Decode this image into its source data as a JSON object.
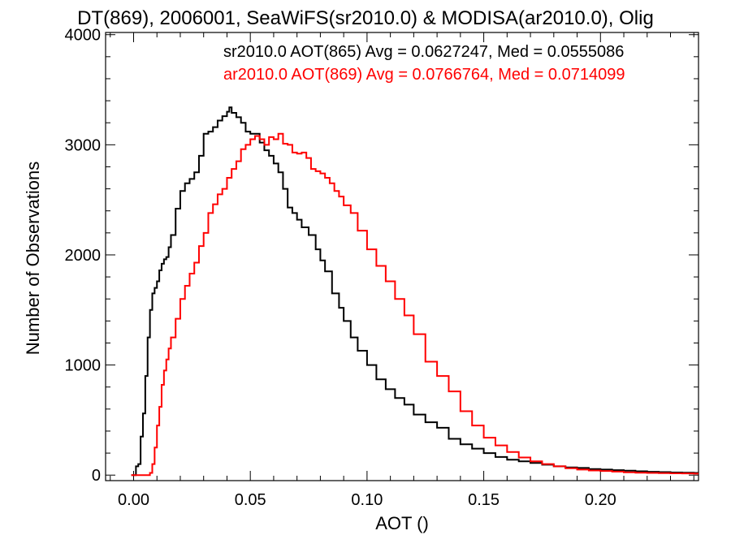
{
  "chart_data": {
    "type": "line",
    "title": "DT(869), 2006001, SeaWiFS(sr2010.0) & MODISA(ar2010.0), Olig",
    "xlabel": "AOT ()",
    "ylabel": "Number of Observations",
    "xlim": [
      -0.012,
      0.242
    ],
    "ylim": [
      -50,
      4020
    ],
    "xticks": [
      0.0,
      0.05,
      0.1,
      0.15,
      0.2
    ],
    "xtick_labels": [
      "0.00",
      "0.05",
      "0.10",
      "0.15",
      "0.20"
    ],
    "yticks": [
      0,
      1000,
      2000,
      3000,
      4000
    ],
    "ytick_labels": [
      "0",
      "1000",
      "2000",
      "3000",
      "4000"
    ],
    "grid": false,
    "legend_position": "top-right",
    "series": [
      {
        "name": "sr2010.0 AOT(865) Avg = 0.0627247, Med = 0.0555086",
        "color": "#000000",
        "x": [
          -0.001,
          0.0,
          0.001,
          0.002,
          0.003,
          0.004,
          0.005,
          0.006,
          0.007,
          0.008,
          0.009,
          0.01,
          0.011,
          0.012,
          0.013,
          0.014,
          0.015,
          0.016,
          0.018,
          0.02,
          0.022,
          0.024,
          0.026,
          0.028,
          0.03,
          0.032,
          0.034,
          0.036,
          0.038,
          0.04,
          0.041,
          0.042,
          0.044,
          0.046,
          0.048,
          0.05,
          0.052,
          0.054,
          0.056,
          0.058,
          0.06,
          0.062,
          0.064,
          0.066,
          0.068,
          0.07,
          0.072,
          0.075,
          0.078,
          0.08,
          0.082,
          0.085,
          0.088,
          0.09,
          0.093,
          0.096,
          0.1,
          0.104,
          0.108,
          0.112,
          0.116,
          0.12,
          0.125,
          0.13,
          0.135,
          0.14,
          0.145,
          0.15,
          0.155,
          0.16,
          0.165,
          0.17,
          0.175,
          0.18,
          0.185,
          0.19,
          0.195,
          0.2,
          0.205,
          0.21,
          0.215,
          0.22,
          0.225,
          0.23,
          0.235,
          0.24
        ],
        "y": [
          0,
          0,
          80,
          100,
          350,
          560,
          900,
          1250,
          1500,
          1650,
          1700,
          1760,
          1860,
          1920,
          1960,
          1980,
          2070,
          2180,
          2420,
          2580,
          2650,
          2690,
          2750,
          2900,
          3100,
          3120,
          3160,
          3220,
          3260,
          3300,
          3340,
          3290,
          3250,
          3200,
          3120,
          3100,
          3100,
          3020,
          2950,
          2900,
          2830,
          2750,
          2600,
          2430,
          2380,
          2320,
          2250,
          2180,
          2050,
          1950,
          1850,
          1650,
          1520,
          1400,
          1250,
          1130,
          1000,
          870,
          780,
          700,
          640,
          550,
          480,
          430,
          330,
          280,
          240,
          200,
          165,
          140,
          125,
          110,
          95,
          80,
          70,
          65,
          55,
          50,
          45,
          40,
          35,
          30,
          27,
          24,
          22,
          20
        ]
      },
      {
        "name": "ar2010.0 AOT(869) Avg = 0.0766764, Med = 0.0714099",
        "color": "#ff0000",
        "x": [
          -0.001,
          0.0,
          0.004,
          0.007,
          0.008,
          0.009,
          0.01,
          0.011,
          0.012,
          0.013,
          0.014,
          0.015,
          0.016,
          0.018,
          0.02,
          0.022,
          0.024,
          0.026,
          0.028,
          0.03,
          0.032,
          0.034,
          0.036,
          0.038,
          0.04,
          0.042,
          0.044,
          0.046,
          0.048,
          0.05,
          0.052,
          0.054,
          0.056,
          0.058,
          0.06,
          0.062,
          0.064,
          0.066,
          0.068,
          0.07,
          0.072,
          0.074,
          0.076,
          0.078,
          0.08,
          0.082,
          0.084,
          0.086,
          0.088,
          0.09,
          0.093,
          0.096,
          0.1,
          0.104,
          0.108,
          0.112,
          0.116,
          0.12,
          0.125,
          0.13,
          0.135,
          0.14,
          0.145,
          0.15,
          0.155,
          0.16,
          0.165,
          0.17,
          0.175,
          0.18,
          0.185,
          0.19,
          0.195,
          0.2,
          0.205,
          0.21,
          0.215,
          0.22,
          0.225,
          0.23,
          0.235,
          0.24
        ],
        "y": [
          0,
          0,
          0,
          20,
          100,
          250,
          450,
          620,
          820,
          950,
          1050,
          1150,
          1250,
          1420,
          1600,
          1720,
          1830,
          1930,
          2080,
          2200,
          2380,
          2460,
          2550,
          2600,
          2700,
          2780,
          2850,
          2960,
          3000,
          3050,
          3080,
          3050,
          3000,
          3070,
          3050,
          3100,
          3010,
          3000,
          2930,
          2920,
          2930,
          2880,
          2780,
          2760,
          2740,
          2700,
          2650,
          2580,
          2530,
          2450,
          2380,
          2220,
          2050,
          1900,
          1760,
          1600,
          1450,
          1280,
          1030,
          900,
          760,
          580,
          450,
          340,
          270,
          210,
          160,
          125,
          100,
          80,
          62,
          50,
          42,
          38,
          32,
          26,
          22,
          20,
          18,
          16,
          15,
          14
        ]
      }
    ]
  }
}
